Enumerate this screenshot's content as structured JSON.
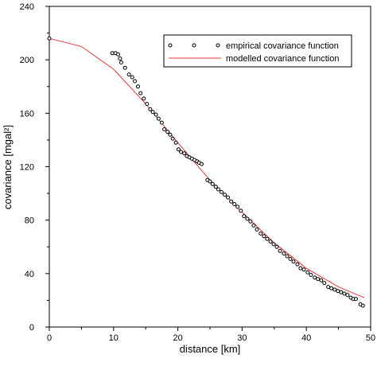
{
  "chart_data": {
    "type": "scatter",
    "xlabel": "distance [km]",
    "ylabel": "covariance [mgal²]",
    "xlim": [
      0,
      50
    ],
    "ylim": [
      0,
      240
    ],
    "xticks": [
      "0",
      "10",
      "20",
      "30",
      "40",
      "50"
    ],
    "yticks": [
      "0",
      "40",
      "80",
      "120",
      "160",
      "200",
      "240"
    ],
    "grid": false,
    "legend_position": "top-right",
    "series": [
      {
        "name": "empirical covariance function",
        "kind": "points",
        "marker": "open-circle",
        "color": "#000000",
        "x": [
          0,
          9.8,
          10.3,
          10.7,
          11.0,
          11.2,
          11.8,
          12.4,
          12.9,
          13.3,
          13.8,
          14.2,
          14.7,
          15.2,
          15.7,
          16.1,
          16.6,
          17.0,
          17.5,
          17.9,
          18.4,
          18.8,
          19.2,
          19.7,
          20.1,
          20.5,
          21.0,
          21.4,
          21.8,
          22.2,
          22.6,
          23.0,
          23.3,
          23.7,
          24.6,
          25.0,
          25.4,
          25.9,
          26.3,
          26.8,
          27.3,
          27.8,
          28.3,
          28.8,
          29.3,
          29.8,
          30.3,
          30.8,
          31.3,
          31.8,
          32.3,
          32.9,
          33.4,
          33.9,
          34.4,
          34.9,
          35.4,
          35.9,
          36.5,
          37.0,
          37.5,
          38.0,
          38.6,
          39.1,
          39.6,
          40.2,
          40.7,
          41.3,
          41.8,
          42.3,
          42.8,
          43.4,
          43.9,
          44.4,
          44.9,
          45.4,
          45.9,
          46.4,
          46.9,
          47.3,
          47.7,
          48.4,
          48.8
        ],
        "y": [
          216,
          205,
          205,
          204,
          201,
          198,
          194,
          189,
          187,
          184,
          180,
          175,
          171,
          167,
          163,
          161,
          159,
          156,
          153,
          148,
          146,
          144,
          141,
          138,
          133,
          131,
          130,
          128,
          127,
          126,
          125,
          124,
          123,
          122,
          110,
          109,
          107,
          105,
          103,
          101,
          99,
          97,
          94,
          92,
          90,
          87,
          83,
          81,
          79,
          76,
          73,
          70,
          68,
          66,
          64,
          62,
          60,
          57,
          55,
          53,
          51,
          49,
          47,
          44,
          43,
          41,
          39,
          37,
          36,
          35,
          33,
          30,
          29,
          28,
          27,
          26,
          25,
          24,
          22,
          21,
          21,
          17,
          16
        ]
      },
      {
        "name": "modelled covariance function",
        "kind": "line",
        "color": "#e8383a",
        "x": [
          0,
          5,
          10,
          15,
          20,
          25,
          30,
          35,
          40,
          45,
          49
        ],
        "y": [
          216,
          210,
          193,
          167,
          138,
          110,
          86,
          63,
          44,
          30,
          22
        ]
      }
    ]
  }
}
